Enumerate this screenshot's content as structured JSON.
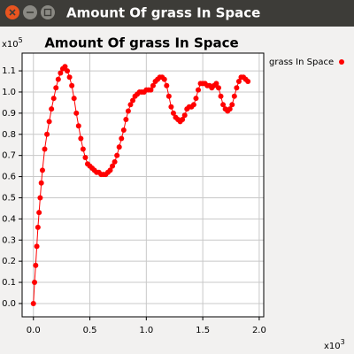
{
  "window_title": "Amount Of grass In Space",
  "chart_data": {
    "type": "line",
    "title": "Amount Of grass In Space",
    "y_multiplier": {
      "base": "x10",
      "exponent": "5"
    },
    "x_multiplier": {
      "base": "x10",
      "exponent": "3"
    },
    "x": [
      0,
      0.01,
      0.02,
      0.03,
      0.04,
      0.05,
      0.06,
      0.07,
      0.08,
      0.1,
      0.12,
      0.14,
      0.16,
      0.18,
      0.2,
      0.22,
      0.24,
      0.26,
      0.28,
      0.3,
      0.32,
      0.34,
      0.36,
      0.38,
      0.4,
      0.42,
      0.44,
      0.46,
      0.48,
      0.5,
      0.52,
      0.54,
      0.56,
      0.58,
      0.6,
      0.62,
      0.64,
      0.66,
      0.68,
      0.7,
      0.72,
      0.74,
      0.76,
      0.78,
      0.8,
      0.82,
      0.84,
      0.86,
      0.88,
      0.9,
      0.92,
      0.94,
      0.96,
      0.98,
      1.0,
      1.02,
      1.04,
      1.06,
      1.08,
      1.1,
      1.12,
      1.14,
      1.16,
      1.18,
      1.2,
      1.22,
      1.24,
      1.26,
      1.28,
      1.3,
      1.32,
      1.34,
      1.36,
      1.38,
      1.4,
      1.42,
      1.44,
      1.46,
      1.48,
      1.5,
      1.52,
      1.54,
      1.56,
      1.58,
      1.6,
      1.62,
      1.64,
      1.66,
      1.68,
      1.7,
      1.72,
      1.74,
      1.76,
      1.78,
      1.8,
      1.82,
      1.84,
      1.86,
      1.88,
      1.9
    ],
    "series": [
      {
        "name": "grass In Space",
        "color": "#ff0000",
        "values": [
          0,
          0.1,
          0.18,
          0.27,
          0.36,
          0.43,
          0.5,
          0.57,
          0.63,
          0.73,
          0.8,
          0.86,
          0.92,
          0.97,
          1.02,
          1.06,
          1.09,
          1.11,
          1.12,
          1.1,
          1.07,
          1.03,
          0.97,
          0.9,
          0.84,
          0.78,
          0.73,
          0.69,
          0.66,
          0.65,
          0.64,
          0.63,
          0.62,
          0.62,
          0.61,
          0.61,
          0.61,
          0.62,
          0.63,
          0.65,
          0.67,
          0.7,
          0.74,
          0.78,
          0.82,
          0.87,
          0.91,
          0.94,
          0.96,
          0.98,
          0.99,
          1.0,
          1.0,
          1.0,
          1.01,
          1.01,
          1.01,
          1.03,
          1.05,
          1.06,
          1.07,
          1.07,
          1.06,
          1.03,
          0.98,
          0.93,
          0.9,
          0.88,
          0.87,
          0.86,
          0.87,
          0.89,
          0.92,
          0.93,
          0.93,
          0.94,
          0.97,
          1.01,
          1.04,
          1.04,
          1.04,
          1.03,
          1.03,
          1.02,
          1.03,
          1.04,
          1.02,
          0.98,
          0.94,
          0.92,
          0.91,
          0.92,
          0.94,
          0.98,
          1.02,
          1.05,
          1.07,
          1.07,
          1.06,
          1.05
        ]
      }
    ],
    "xlim": [
      -0.1,
      2.04
    ],
    "ylim": [
      -0.063,
      1.184
    ],
    "xticks": [
      {
        "value": 0,
        "label": "0.0"
      },
      0.5,
      {
        "value": 1,
        "label": "1.0"
      },
      1.5,
      {
        "value": 2,
        "label": "2.0"
      }
    ],
    "yticks": [
      {
        "value": 0,
        "label": "0.0"
      },
      0.1,
      0.2,
      0.3,
      0.4,
      0.5,
      0.6,
      0.7,
      0.8,
      0.9,
      {
        "value": 1,
        "label": "1.0"
      },
      1.1
    ],
    "grid": true,
    "legend": "right"
  }
}
